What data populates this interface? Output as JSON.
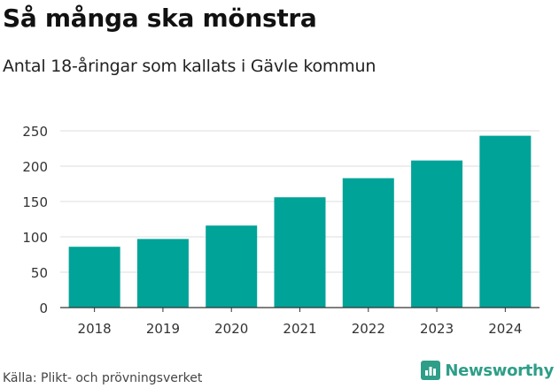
{
  "chart_data": {
    "type": "bar",
    "title": "Så många ska mönstra",
    "subtitle": "Antal 18-åringar som kallats i Gävle kommun",
    "categories": [
      "2018",
      "2019",
      "2020",
      "2021",
      "2022",
      "2023",
      "2024"
    ],
    "values": [
      86,
      97,
      116,
      156,
      183,
      208,
      243
    ],
    "ylim": [
      0,
      250
    ],
    "yticks": [
      0,
      50,
      100,
      150,
      200,
      250
    ],
    "xlabel": "",
    "ylabel": "",
    "grid": true,
    "bar_color": "#00a398"
  },
  "footer": {
    "source": "Källa: Plikt- och prövningsverket",
    "brand": "Newsworthy",
    "brand_icon": "newsworthy-logo-icon",
    "brand_color": "#2e9e88"
  }
}
